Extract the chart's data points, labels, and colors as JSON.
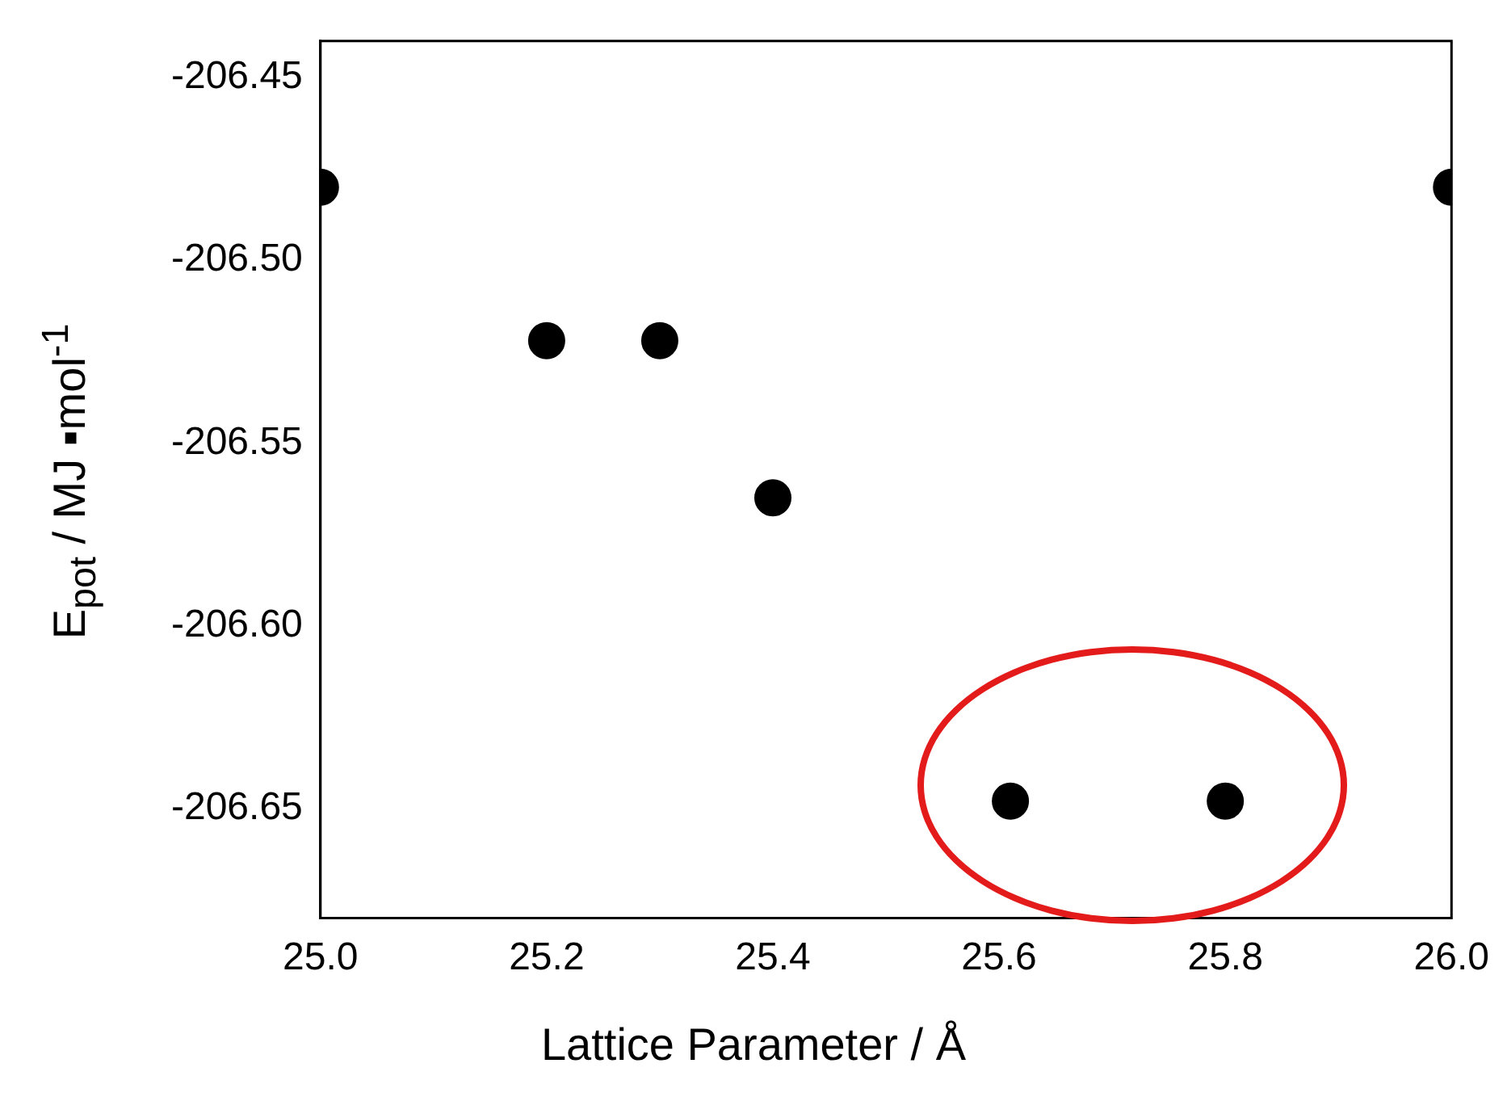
{
  "chart_data": {
    "type": "scatter",
    "xlabel": "Lattice Parameter / Å",
    "ylabel": "E$_{pot}$ / MJ ▪mol$^{-1}$",
    "x": [
      25.0,
      25.2,
      25.3,
      25.4,
      25.61,
      25.8,
      26.0
    ],
    "values": [
      -206.48,
      -206.522,
      -206.522,
      -206.565,
      -206.648,
      -206.648,
      -206.48
    ],
    "color": "#000000",
    "marker": "circle",
    "grid": false,
    "legend": false,
    "xlim": [
      25.0,
      26.0
    ],
    "xticks": [
      {
        "value": 25,
        "label": "25.0"
      },
      25.2,
      25.4,
      25.6,
      25.8,
      {
        "value": 26,
        "label": "26.0"
      }
    ],
    "ylim": [
      -206.68,
      -206.44
    ],
    "yticks": [
      -206.45,
      {
        "value": -206.5,
        "label": "-206.50"
      },
      -206.55,
      {
        "value": -206.6,
        "label": "-206.60"
      },
      -206.65
    ]
  }
}
